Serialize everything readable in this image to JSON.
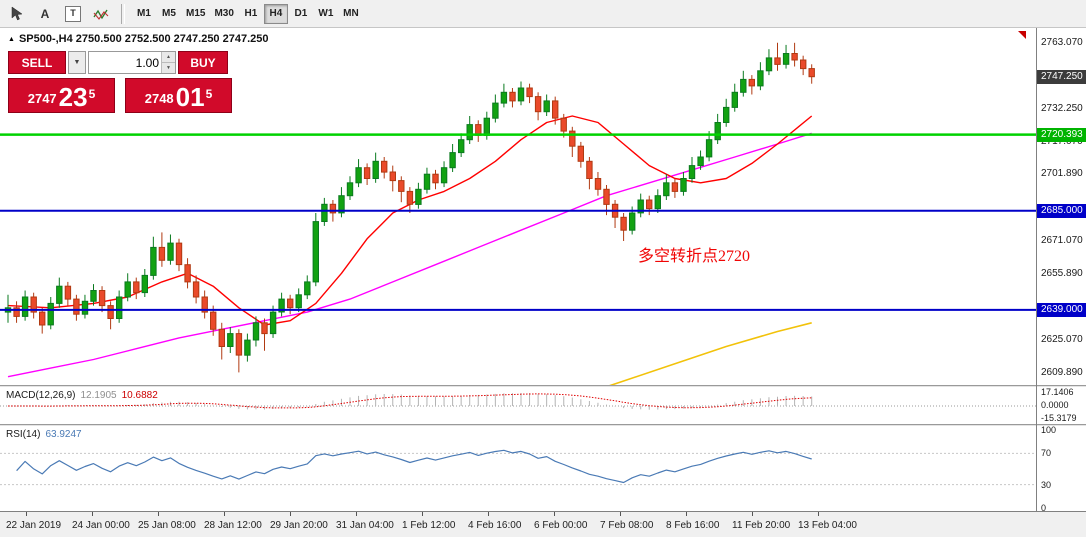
{
  "toolbar": {
    "icon_a_glyph": "A",
    "icon_t_glyph": "T",
    "timeframes": [
      "M1",
      "M5",
      "M15",
      "M30",
      "H1",
      "H4",
      "D1",
      "W1",
      "MN"
    ],
    "active_timeframe": "H4"
  },
  "chart": {
    "title_marker": "▲",
    "window_title": "SP500-,H4 2750.500 2752.500 2747.250 2747.250",
    "trade_panel": {
      "sell_label": "SELL",
      "buy_label": "BUY",
      "volume": "1.00",
      "bid": {
        "prefix": "2747",
        "main": "23",
        "sup": "5"
      },
      "ask": {
        "prefix": "2748",
        "main": "01",
        "sup": "5"
      }
    }
  },
  "chart_data": {
    "type": "candlestick",
    "symbol": "SP500-",
    "period": "H4",
    "ohlc_current": {
      "open": "2750.500",
      "high": "2752.500",
      "low": "2747.250",
      "close": "2747.250"
    },
    "price_axis": {
      "min": 2606,
      "max": 2768,
      "labels": [
        {
          "label": "2763.070",
          "price": 2763.07
        },
        {
          "label": "2732.250",
          "price": 2732.25
        },
        {
          "label": "2717.070",
          "price": 2717.07
        },
        {
          "label": "2701.890",
          "price": 2701.89
        },
        {
          "label": "2671.070",
          "price": 2671.07
        },
        {
          "label": "2655.890",
          "price": 2655.89
        },
        {
          "label": "2625.070",
          "price": 2625.07
        },
        {
          "label": "2609.890",
          "price": 2609.89
        }
      ],
      "special": [
        {
          "label": "2747.250",
          "price": 2747.25,
          "bg": "#3c3c3c"
        },
        {
          "label": "2720.393",
          "price": 2720.393,
          "bg": "#00b400"
        },
        {
          "label": "2685.000",
          "price": 2685.0,
          "bg": "#0000c8"
        },
        {
          "label": "2639.000",
          "price": 2639.0,
          "bg": "#0000c8"
        }
      ]
    },
    "hlines": [
      {
        "price": 2720.393,
        "color": "#00d200",
        "width": 2.5
      },
      {
        "price": 2685.0,
        "color": "#0000c8",
        "width": 2
      },
      {
        "price": 2639.0,
        "color": "#0000c8",
        "width": 2
      }
    ],
    "annotation": {
      "text": "多空转折点2720",
      "color": "#f00505"
    },
    "colors": {
      "up": "#12a212",
      "up_border": "#0a7a1f",
      "down": "#ea4a2a",
      "down_border": "#b03a12",
      "ma_red": "#ff0000",
      "ma_magenta": "#ff00ff",
      "ma_yellow": "#f2c20a",
      "macd_hist": "#b4b4b4",
      "macd_signal": "#e00000",
      "rsi_line": "#4a7ab5"
    },
    "candles": [
      [
        2638,
        2646,
        2633,
        2640
      ],
      [
        2640,
        2643,
        2633,
        2636
      ],
      [
        2636,
        2648,
        2634,
        2645
      ],
      [
        2645,
        2647,
        2635,
        2638
      ],
      [
        2638,
        2640,
        2628,
        2632
      ],
      [
        2632,
        2645,
        2630,
        2642
      ],
      [
        2642,
        2654,
        2640,
        2650
      ],
      [
        2650,
        2652,
        2641,
        2644
      ],
      [
        2644,
        2646,
        2634,
        2637
      ],
      [
        2637,
        2646,
        2635,
        2643
      ],
      [
        2643,
        2651,
        2641,
        2648
      ],
      [
        2648,
        2650,
        2638,
        2641
      ],
      [
        2641,
        2643,
        2630,
        2635
      ],
      [
        2635,
        2648,
        2633,
        2645
      ],
      [
        2645,
        2656,
        2643,
        2652
      ],
      [
        2652,
        2654,
        2644,
        2647
      ],
      [
        2647,
        2658,
        2645,
        2655
      ],
      [
        2655,
        2673,
        2653,
        2668
      ],
      [
        2668,
        2675,
        2659,
        2662
      ],
      [
        2662,
        2674,
        2660,
        2670
      ],
      [
        2670,
        2672,
        2657,
        2660
      ],
      [
        2660,
        2663,
        2649,
        2652
      ],
      [
        2652,
        2655,
        2642,
        2645
      ],
      [
        2645,
        2648,
        2635,
        2638
      ],
      [
        2638,
        2641,
        2627,
        2630
      ],
      [
        2630,
        2633,
        2616,
        2622
      ],
      [
        2622,
        2631,
        2619,
        2628
      ],
      [
        2628,
        2630,
        2610,
        2618
      ],
      [
        2618,
        2628,
        2615,
        2625
      ],
      [
        2625,
        2636,
        2622,
        2633
      ],
      [
        2633,
        2635,
        2620,
        2628
      ],
      [
        2628,
        2641,
        2626,
        2638
      ],
      [
        2638,
        2647,
        2636,
        2644
      ],
      [
        2644,
        2646,
        2637,
        2640
      ],
      [
        2640,
        2649,
        2638,
        2646
      ],
      [
        2646,
        2655,
        2644,
        2652
      ],
      [
        2652,
        2684,
        2650,
        2680
      ],
      [
        2680,
        2691,
        2678,
        2688
      ],
      [
        2688,
        2690,
        2680,
        2684
      ],
      [
        2684,
        2696,
        2682,
        2692
      ],
      [
        2692,
        2701,
        2690,
        2698
      ],
      [
        2698,
        2709,
        2696,
        2705
      ],
      [
        2705,
        2707,
        2697,
        2700
      ],
      [
        2700,
        2712,
        2698,
        2708
      ],
      [
        2708,
        2710,
        2700,
        2703
      ],
      [
        2703,
        2706,
        2694,
        2699
      ],
      [
        2699,
        2701,
        2689,
        2694
      ],
      [
        2694,
        2696,
        2684,
        2688
      ],
      [
        2688,
        2698,
        2686,
        2695
      ],
      [
        2695,
        2705,
        2693,
        2702
      ],
      [
        2702,
        2704,
        2695,
        2698
      ],
      [
        2698,
        2708,
        2696,
        2705
      ],
      [
        2705,
        2716,
        2703,
        2712
      ],
      [
        2712,
        2721,
        2710,
        2718
      ],
      [
        2718,
        2729,
        2716,
        2725
      ],
      [
        2725,
        2727,
        2717,
        2720
      ],
      [
        2720,
        2731,
        2718,
        2728
      ],
      [
        2728,
        2739,
        2726,
        2735
      ],
      [
        2735,
        2744,
        2733,
        2740
      ],
      [
        2740,
        2742,
        2733,
        2736
      ],
      [
        2736,
        2745,
        2734,
        2742
      ],
      [
        2742,
        2744,
        2735,
        2738
      ],
      [
        2738,
        2740,
        2727,
        2731
      ],
      [
        2731,
        2739,
        2729,
        2736
      ],
      [
        2736,
        2738,
        2725,
        2728
      ],
      [
        2728,
        2730,
        2719,
        2722
      ],
      [
        2722,
        2724,
        2710,
        2715
      ],
      [
        2715,
        2717,
        2705,
        2708
      ],
      [
        2708,
        2710,
        2695,
        2700
      ],
      [
        2700,
        2703,
        2692,
        2695
      ],
      [
        2695,
        2697,
        2683,
        2688
      ],
      [
        2688,
        2690,
        2677,
        2682
      ],
      [
        2682,
        2684,
        2671,
        2676
      ],
      [
        2676,
        2687,
        2674,
        2684
      ],
      [
        2684,
        2693,
        2682,
        2690
      ],
      [
        2690,
        2692,
        2683,
        2686
      ],
      [
        2686,
        2695,
        2684,
        2692
      ],
      [
        2692,
        2702,
        2690,
        2698
      ],
      [
        2698,
        2700,
        2691,
        2694
      ],
      [
        2694,
        2703,
        2692,
        2700
      ],
      [
        2700,
        2710,
        2698,
        2706
      ],
      [
        2706,
        2713,
        2704,
        2710
      ],
      [
        2710,
        2722,
        2708,
        2718
      ],
      [
        2718,
        2730,
        2716,
        2726
      ],
      [
        2726,
        2737,
        2724,
        2733
      ],
      [
        2733,
        2744,
        2731,
        2740
      ],
      [
        2740,
        2750,
        2738,
        2746
      ],
      [
        2746,
        2748,
        2739,
        2743
      ],
      [
        2743,
        2754,
        2741,
        2750
      ],
      [
        2750,
        2760,
        2748,
        2756
      ],
      [
        2756,
        2763,
        2750,
        2753
      ],
      [
        2753,
        2762,
        2751,
        2758
      ],
      [
        2758,
        2763,
        2752,
        2755
      ],
      [
        2755,
        2757,
        2748,
        2751
      ],
      [
        2751,
        2753,
        2744,
        2747.25
      ]
    ],
    "ma_red": [
      [
        0,
        2641
      ],
      [
        5,
        2640
      ],
      [
        10,
        2642
      ],
      [
        14,
        2645
      ],
      [
        18,
        2652
      ],
      [
        21,
        2656
      ],
      [
        24,
        2650
      ],
      [
        27,
        2640
      ],
      [
        30,
        2632
      ],
      [
        33,
        2634
      ],
      [
        36,
        2642
      ],
      [
        39,
        2656
      ],
      [
        42,
        2672
      ],
      [
        45,
        2684
      ],
      [
        48,
        2690
      ],
      [
        51,
        2694
      ],
      [
        54,
        2700
      ],
      [
        57,
        2708
      ],
      [
        60,
        2718
      ],
      [
        63,
        2726
      ],
      [
        66,
        2729
      ],
      [
        69,
        2726
      ],
      [
        72,
        2716
      ],
      [
        75,
        2706
      ],
      [
        78,
        2700
      ],
      [
        81,
        2698
      ],
      [
        84,
        2700
      ],
      [
        87,
        2707
      ],
      [
        90,
        2716
      ],
      [
        94,
        2729
      ]
    ],
    "ma_magenta": [
      [
        0,
        2608
      ],
      [
        5,
        2612
      ],
      [
        10,
        2616
      ],
      [
        15,
        2621
      ],
      [
        20,
        2626
      ],
      [
        25,
        2630
      ],
      [
        30,
        2634
      ],
      [
        35,
        2638
      ],
      [
        40,
        2644
      ],
      [
        45,
        2652
      ],
      [
        50,
        2660
      ],
      [
        55,
        2668
      ],
      [
        60,
        2676
      ],
      [
        65,
        2684
      ],
      [
        70,
        2692
      ],
      [
        75,
        2698
      ],
      [
        80,
        2704
      ],
      [
        85,
        2710
      ],
      [
        90,
        2716
      ],
      [
        94,
        2721
      ]
    ],
    "ma_yellow": [
      [
        66,
        2598
      ],
      [
        72,
        2606
      ],
      [
        78,
        2614
      ],
      [
        84,
        2622
      ],
      [
        90,
        2629
      ],
      [
        94,
        2633
      ]
    ],
    "macd": {
      "name": "MACD(12,26,9)",
      "v1": "12.1905",
      "v2": "10.6882",
      "fast": 12,
      "slow": 26,
      "signal": 9,
      "axis": [
        {
          "label": "17.1406",
          "v": 17.1406
        },
        {
          "label": "0.0000",
          "v": 0
        },
        {
          "label": "-15.3179",
          "v": -15.3179
        }
      ]
    },
    "rsi": {
      "name": "RSI(14)",
      "value": "63.9247",
      "period": 14,
      "axis": [
        {
          "label": "100",
          "v": 100
        },
        {
          "label": "70",
          "v": 70
        },
        {
          "label": "30",
          "v": 30
        },
        {
          "label": "0",
          "v": 0
        }
      ],
      "levels": [
        70,
        30
      ]
    },
    "time_labels": [
      "22 Jan 2019",
      "24 Jan 00:00",
      "25 Jan 08:00",
      "28 Jan 12:00",
      "29 Jan 20:00",
      "31 Jan 04:00",
      "1 Feb 12:00",
      "4 Feb 16:00",
      "6 Feb 00:00",
      "7 Feb 08:00",
      "8 Feb 16:00",
      "11 Feb 20:00",
      "13 Feb 04:00"
    ]
  }
}
